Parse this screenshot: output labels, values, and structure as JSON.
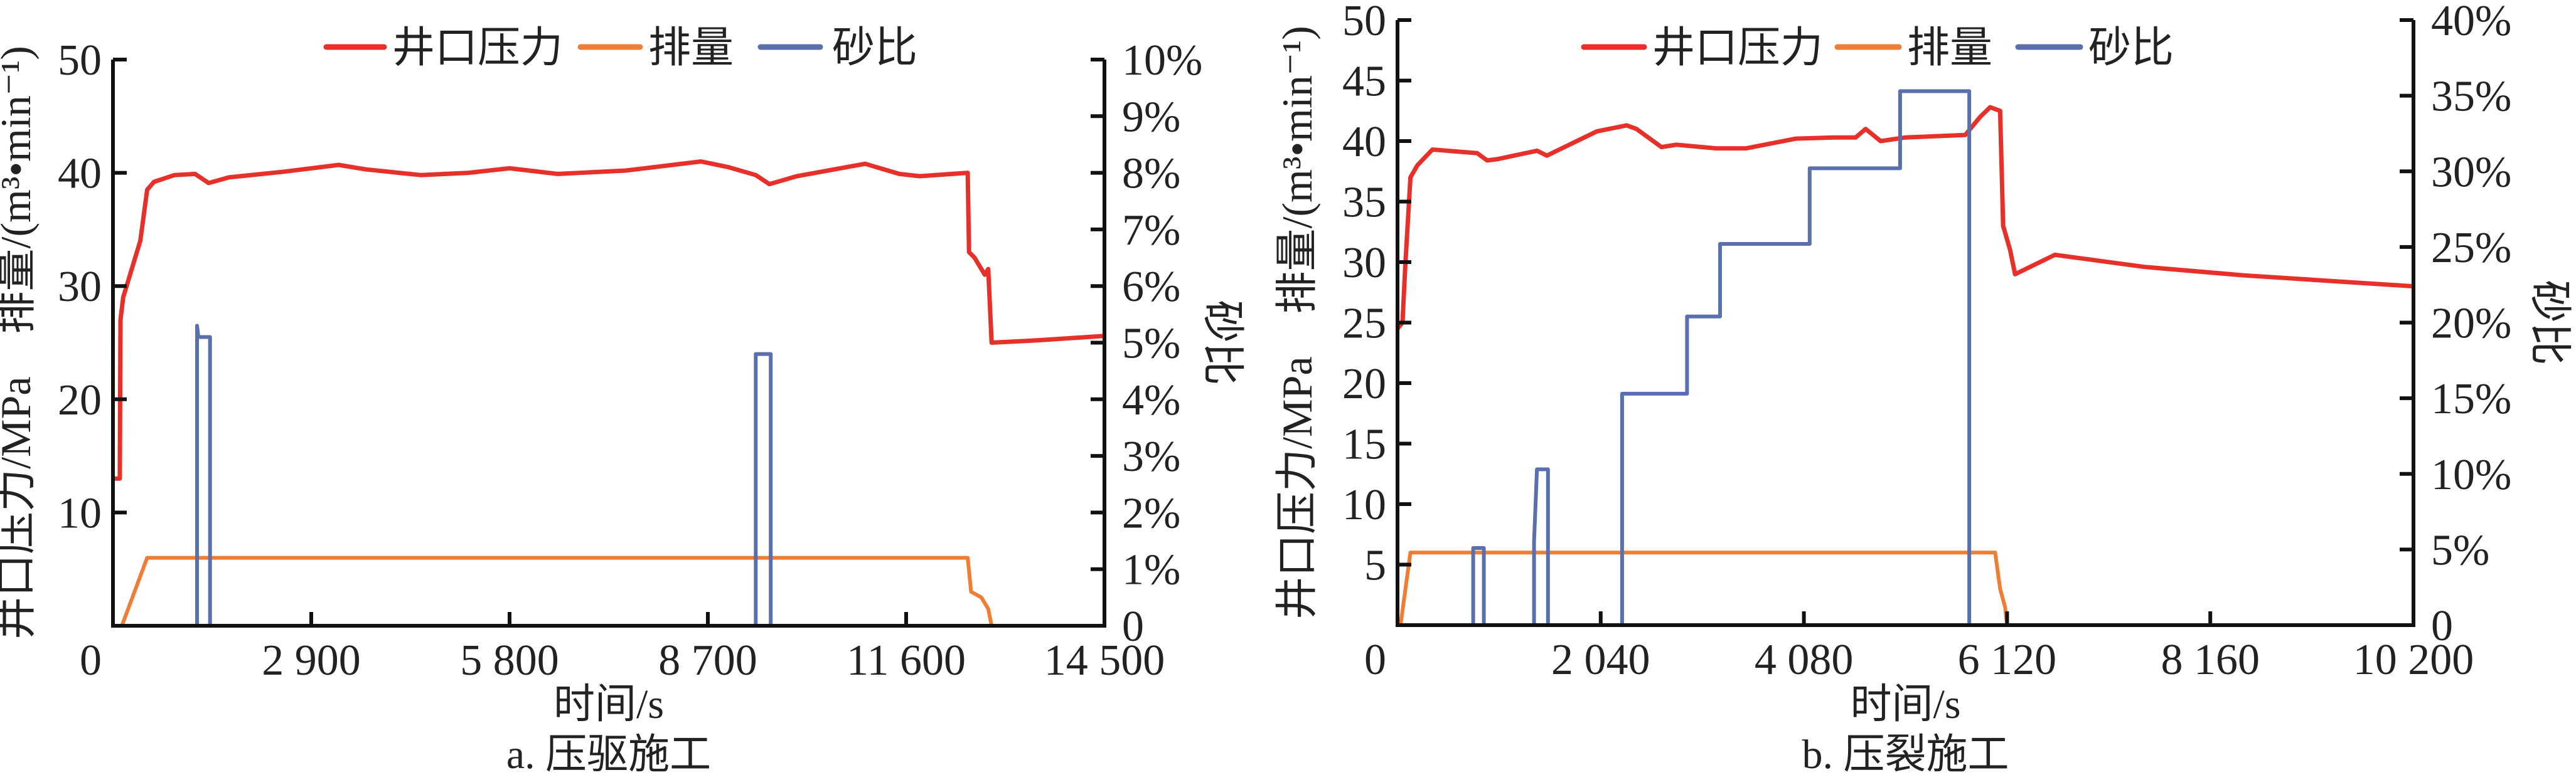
{
  "chart_data": [
    {
      "type": "line",
      "caption": "a. 压驱施工",
      "xlabel": "时间/s",
      "ylabel_left": "井口压力/MPa　排量/(m³•min⁻¹)",
      "ylabel_right": "砂比",
      "xlim": [
        0,
        14500
      ],
      "xticks": [
        0,
        2900,
        5800,
        8700,
        11600,
        14500
      ],
      "xtick_labels": [
        "0",
        "2 900",
        "5 800",
        "8 700",
        "11 600",
        "14 500"
      ],
      "ylim_left": [
        0,
        50
      ],
      "yticks_left": [
        10,
        20,
        30,
        40,
        50
      ],
      "ytick_labels_left": [
        "10",
        "20",
        "30",
        "40",
        "50"
      ],
      "ylim_right": [
        0,
        10
      ],
      "yticks_right": [
        0,
        1,
        2,
        3,
        4,
        5,
        6,
        7,
        8,
        9,
        10
      ],
      "ytick_labels_right": [
        "0",
        "1%",
        "2%",
        "3%",
        "4%",
        "5%",
        "6%",
        "7%",
        "8%",
        "9%",
        "10%"
      ],
      "legend_position": "top-center",
      "series": [
        {
          "name": "井口压力",
          "color": "#e8302a",
          "axis": "left",
          "x": [
            0,
            100,
            110,
            150,
            250,
            400,
            500,
            600,
            900,
            1200,
            1400,
            1700,
            2500,
            3300,
            3700,
            4500,
            5200,
            5800,
            6500,
            7500,
            8600,
            9000,
            9400,
            9600,
            10000,
            11000,
            11500,
            11800,
            12500,
            12520,
            12600,
            12750,
            12800,
            12850,
            13500,
            14500
          ],
          "y": [
            13,
            13,
            27,
            29,
            31,
            34,
            38.5,
            39.2,
            39.8,
            39.9,
            39.1,
            39.6,
            40.1,
            40.7,
            40.3,
            39.8,
            40,
            40.4,
            39.9,
            40.2,
            41,
            40.5,
            39.8,
            39,
            39.7,
            40.8,
            39.9,
            39.7,
            40,
            33,
            32.5,
            31,
            31.5,
            25,
            25.2,
            25.6
          ]
        },
        {
          "name": "排量",
          "color": "#ef7d34",
          "axis": "left",
          "x": [
            0,
            130,
            500,
            12500,
            12550,
            12700,
            12800,
            12850,
            14500
          ],
          "y": [
            0,
            0,
            6,
            6,
            3,
            2.5,
            1.5,
            0,
            0
          ]
        },
        {
          "name": "砂比",
          "color": "#5a6fae",
          "axis": "right",
          "x": [
            0,
            1230,
            1230,
            1250,
            1280,
            1420,
            1420,
            9400,
            9400,
            9620,
            9620,
            14500
          ],
          "y": [
            0,
            0,
            5.3,
            5.1,
            5.1,
            5.1,
            0,
            0,
            4.8,
            4.8,
            0,
            0
          ]
        }
      ]
    },
    {
      "type": "line",
      "caption": "b. 压裂施工",
      "xlabel": "时间/s",
      "ylabel_left": "井口压力/MPa　排量/(m³•min⁻¹)",
      "ylabel_right": "砂比",
      "xlim": [
        0,
        10200
      ],
      "xticks": [
        0,
        2040,
        4080,
        6120,
        8160,
        10200
      ],
      "xtick_labels": [
        "0",
        "2 040",
        "4 080",
        "6 120",
        "8 160",
        "10 200"
      ],
      "ylim_left": [
        0,
        50
      ],
      "yticks_left": [
        5,
        10,
        15,
        20,
        25,
        30,
        35,
        40,
        45,
        50
      ],
      "ytick_labels_left": [
        "5",
        "10",
        "15",
        "20",
        "25",
        "30",
        "35",
        "40",
        "45",
        "50"
      ],
      "ylim_right": [
        0,
        40
      ],
      "yticks_right": [
        0,
        5,
        10,
        15,
        20,
        25,
        30,
        35,
        40
      ],
      "ytick_labels_right": [
        "0",
        "5%",
        "10%",
        "15%",
        "20%",
        "25%",
        "30%",
        "35%",
        "40%"
      ],
      "legend_position": "top-center",
      "series": [
        {
          "name": "井口压力",
          "color": "#e8302a",
          "axis": "left",
          "x": [
            0,
            50,
            80,
            130,
            200,
            350,
            800,
            900,
            1000,
            1400,
            1500,
            1600,
            2000,
            2300,
            2400,
            2650,
            2800,
            3200,
            3500,
            4000,
            4400,
            4600,
            4700,
            4850,
            5100,
            5700,
            5850,
            5950,
            6050,
            6080,
            6150,
            6200,
            6600,
            7500,
            8500,
            10200
          ],
          "y": [
            24.5,
            25,
            30,
            37,
            38,
            39.3,
            39,
            38.4,
            38.5,
            39.2,
            38.8,
            39.2,
            40.8,
            41.3,
            41,
            39.5,
            39.7,
            39.4,
            39.4,
            40.2,
            40.3,
            40.3,
            41,
            40,
            40.3,
            40.5,
            42,
            42.8,
            42.5,
            33,
            31,
            29,
            30.6,
            29.6,
            28.9,
            28
          ]
        },
        {
          "name": "排量",
          "color": "#ef7d34",
          "axis": "left",
          "x": [
            0,
            30,
            130,
            6000,
            6050,
            6100,
            6120,
            10200
          ],
          "y": [
            0,
            0,
            6,
            6,
            3,
            1.5,
            0,
            0
          ]
        },
        {
          "name": "砂比",
          "color": "#5a6fae",
          "axis": "right",
          "x": [
            0,
            760,
            760,
            867,
            867,
            1371,
            1371,
            1400,
            1420,
            1511,
            1511,
            2255,
            2255,
            2907,
            2907,
            3238,
            3238,
            4138,
            4138,
            5046,
            5046,
            5740,
            5740,
            10200
          ],
          "y": [
            0,
            0,
            5.1,
            5.1,
            0,
            0,
            5.5,
            10.3,
            10.3,
            10.3,
            0,
            0,
            15.3,
            15.3,
            20.4,
            20.4,
            25.2,
            25.2,
            30.2,
            30.2,
            35.3,
            35.3,
            0,
            0
          ]
        }
      ]
    }
  ]
}
